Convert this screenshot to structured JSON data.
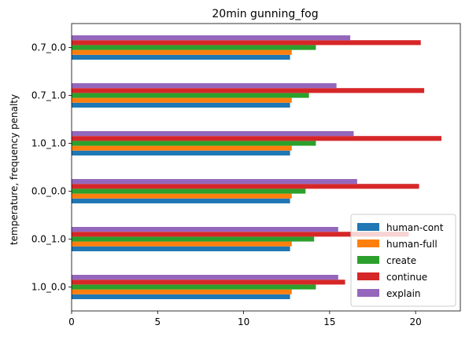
{
  "chart_data": {
    "type": "bar",
    "orientation": "horizontal",
    "title": "20min gunning_fog",
    "xlabel": "",
    "ylabel": "temperature, frequency penalty",
    "categories": [
      "1.0_0.0",
      "0.0_1.0",
      "0.0_0.0",
      "1.0_1.0",
      "0.7_1.0",
      "0.7_0.0"
    ],
    "xlim": [
      0,
      22.6
    ],
    "xticks": [
      0,
      5,
      10,
      15,
      20
    ],
    "legend_position": "lower-right",
    "grid": false,
    "series": [
      {
        "name": "human-cont",
        "color": "#1f77b4",
        "values": [
          12.7,
          12.7,
          12.7,
          12.7,
          12.7,
          12.7
        ]
      },
      {
        "name": "human-full",
        "color": "#ff7f0e",
        "values": [
          12.8,
          12.8,
          12.8,
          12.8,
          12.8,
          12.8
        ]
      },
      {
        "name": "create",
        "color": "#2ca02c",
        "values": [
          14.2,
          14.1,
          13.6,
          14.2,
          13.8,
          14.2
        ]
      },
      {
        "name": "continue",
        "color": "#d62728",
        "values": [
          15.9,
          19.6,
          20.2,
          21.5,
          20.5,
          20.3
        ]
      },
      {
        "name": "explain",
        "color": "#9467bd",
        "values": [
          15.5,
          15.5,
          16.6,
          16.4,
          15.4,
          16.2
        ]
      }
    ]
  }
}
